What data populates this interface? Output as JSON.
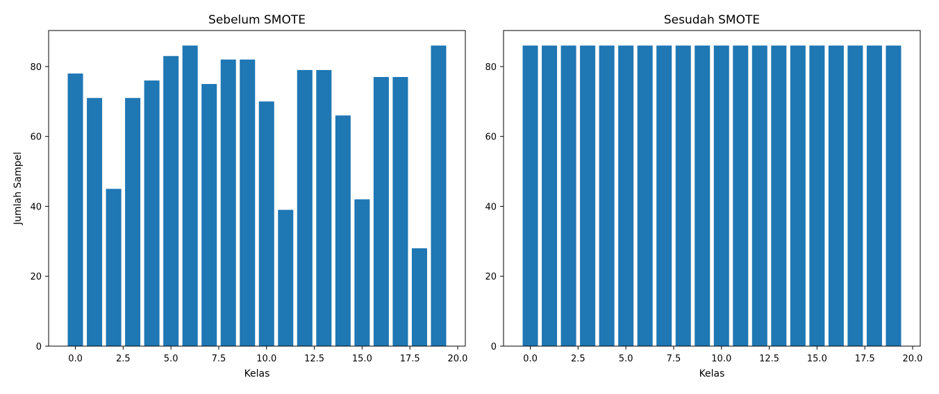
{
  "chart_data": [
    {
      "type": "bar",
      "title": "Sebelum SMOTE",
      "xlabel": "Kelas",
      "ylabel": "Jumlah Sampel",
      "x": [
        0,
        1,
        2,
        3,
        4,
        5,
        6,
        7,
        8,
        9,
        10,
        11,
        12,
        13,
        14,
        15,
        16,
        17,
        18,
        19
      ],
      "values": [
        78,
        71,
        45,
        71,
        76,
        83,
        86,
        75,
        82,
        82,
        70,
        39,
        79,
        79,
        66,
        42,
        77,
        77,
        28,
        86
      ],
      "xlim": [
        -1.4,
        20.4
      ],
      "ylim": [
        0,
        90.3
      ],
      "xticks": [
        0,
        2.5,
        5,
        7.5,
        10,
        12.5,
        15,
        17.5,
        20
      ],
      "xtick_labels": [
        "0.0",
        "2.5",
        "5.0",
        "7.5",
        "10.0",
        "12.5",
        "15.0",
        "17.5",
        "20.0"
      ],
      "yticks": [
        0,
        20,
        40,
        60,
        80
      ],
      "ytick_labels": [
        "0",
        "20",
        "40",
        "60",
        "80"
      ],
      "grid": false,
      "bar_color": "#1f77b4"
    },
    {
      "type": "bar",
      "title": "Sesudah SMOTE",
      "xlabel": "Kelas",
      "ylabel": "",
      "x": [
        0,
        1,
        2,
        3,
        4,
        5,
        6,
        7,
        8,
        9,
        10,
        11,
        12,
        13,
        14,
        15,
        16,
        17,
        18,
        19
      ],
      "values": [
        86,
        86,
        86,
        86,
        86,
        86,
        86,
        86,
        86,
        86,
        86,
        86,
        86,
        86,
        86,
        86,
        86,
        86,
        86,
        86
      ],
      "xlim": [
        -1.4,
        20.4
      ],
      "ylim": [
        0,
        90.3
      ],
      "xticks": [
        0,
        2.5,
        5,
        7.5,
        10,
        12.5,
        15,
        17.5,
        20
      ],
      "xtick_labels": [
        "0.0",
        "2.5",
        "5.0",
        "7.5",
        "10.0",
        "12.5",
        "15.0",
        "17.5",
        "20.0"
      ],
      "yticks": [
        0,
        20,
        40,
        60,
        80
      ],
      "ytick_labels": [
        "0",
        "20",
        "40",
        "60",
        "80"
      ],
      "grid": false,
      "bar_color": "#1f77b4"
    }
  ]
}
